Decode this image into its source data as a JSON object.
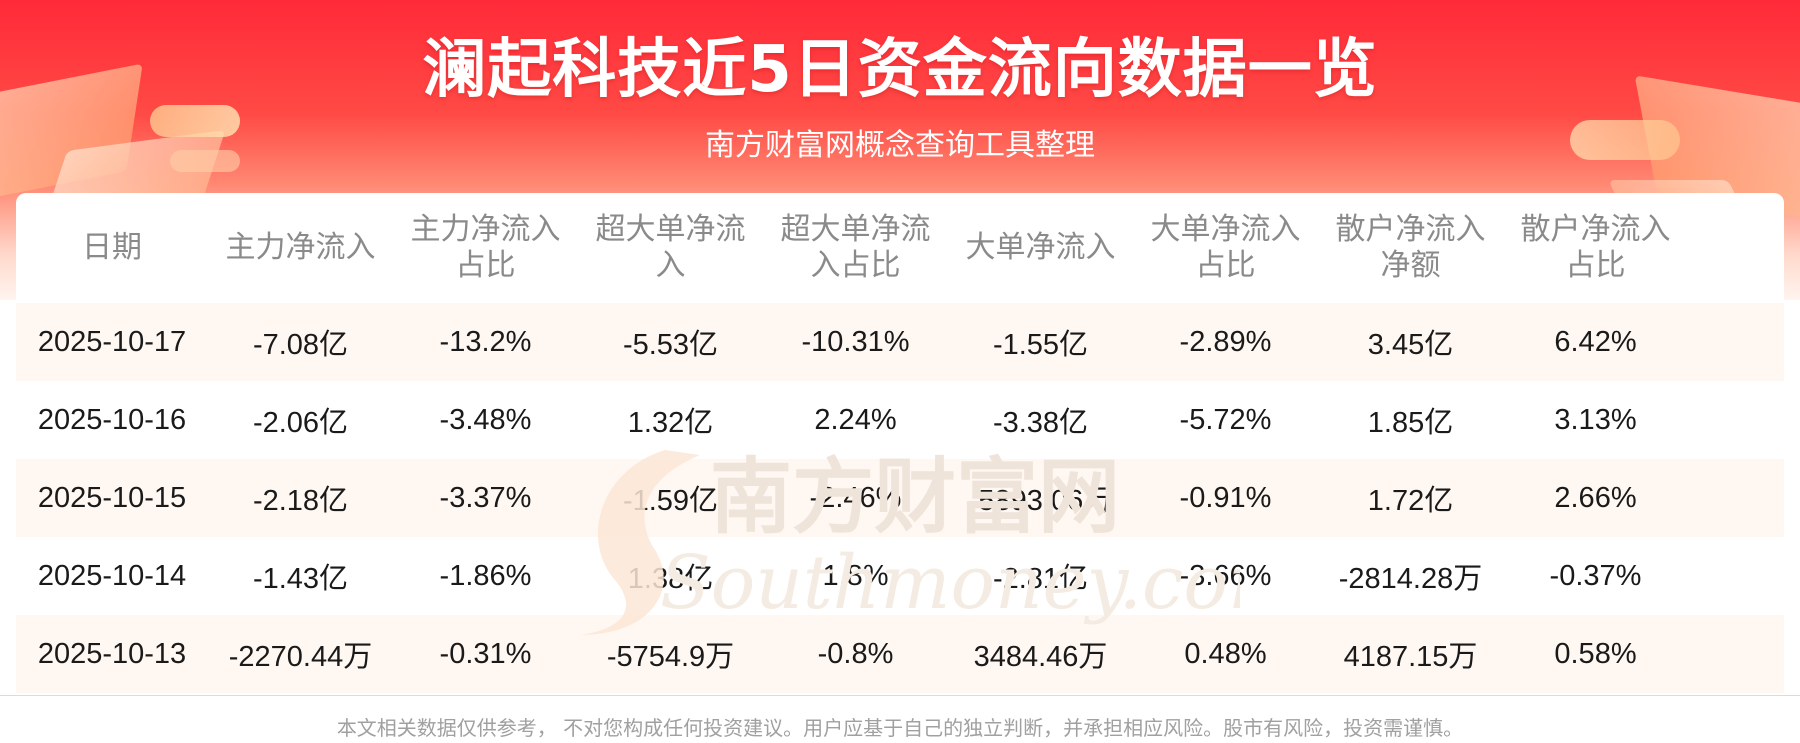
{
  "header": {
    "title": "澜起科技近5日资金流向数据一览",
    "subtitle": "南方财富网概念查询工具整理"
  },
  "table": {
    "columns": [
      [
        "日期"
      ],
      [
        "主力净流入"
      ],
      [
        "主力净流入",
        "占比"
      ],
      [
        "超大单净流",
        "入"
      ],
      [
        "超大单净流",
        "入占比"
      ],
      [
        "大单净流入"
      ],
      [
        "大单净流入",
        "占比"
      ],
      [
        "散户净流入",
        "净额"
      ],
      [
        "散户净流入",
        "占比"
      ]
    ],
    "rows": [
      [
        "2025-10-17",
        "-7.08亿",
        "-13.2%",
        "-5.53亿",
        "-10.31%",
        "-1.55亿",
        "-2.89%",
        "3.45亿",
        "6.42%"
      ],
      [
        "2025-10-16",
        "-2.06亿",
        "-3.48%",
        "1.32亿",
        "2.24%",
        "-3.38亿",
        "-5.72%",
        "1.85亿",
        "3.13%"
      ],
      [
        "2025-10-15",
        "-2.18亿",
        "-3.37%",
        "-1.59亿",
        "-2.46%",
        "-5893.06万",
        "-0.91%",
        "1.72亿",
        "2.66%"
      ],
      [
        "2025-10-14",
        "-1.43亿",
        "-1.86%",
        "1.38亿",
        "1.8%",
        "-2.81亿",
        "-3.66%",
        "-2814.28万",
        "-0.37%"
      ],
      [
        "2025-10-13",
        "-2270.44万",
        "-0.31%",
        "-5754.9万",
        "-0.8%",
        "3484.46万",
        "0.48%",
        "4187.15万",
        "0.58%"
      ]
    ]
  },
  "watermark": {
    "cn": "南方财富网",
    "en": "Southmoney.com"
  },
  "footer": {
    "disclaimer": "本文相关数据仅供参考， 不对您构成任何投资建议。用户应基于自己的独立判断，并承担相应风险。股市有风险，投资需谨慎。"
  },
  "colors": {
    "banner_red": "#ff2a39",
    "row_stripe": "#fff7f1",
    "header_text": "#8a8a8a",
    "body_text": "#1a1a1a"
  }
}
